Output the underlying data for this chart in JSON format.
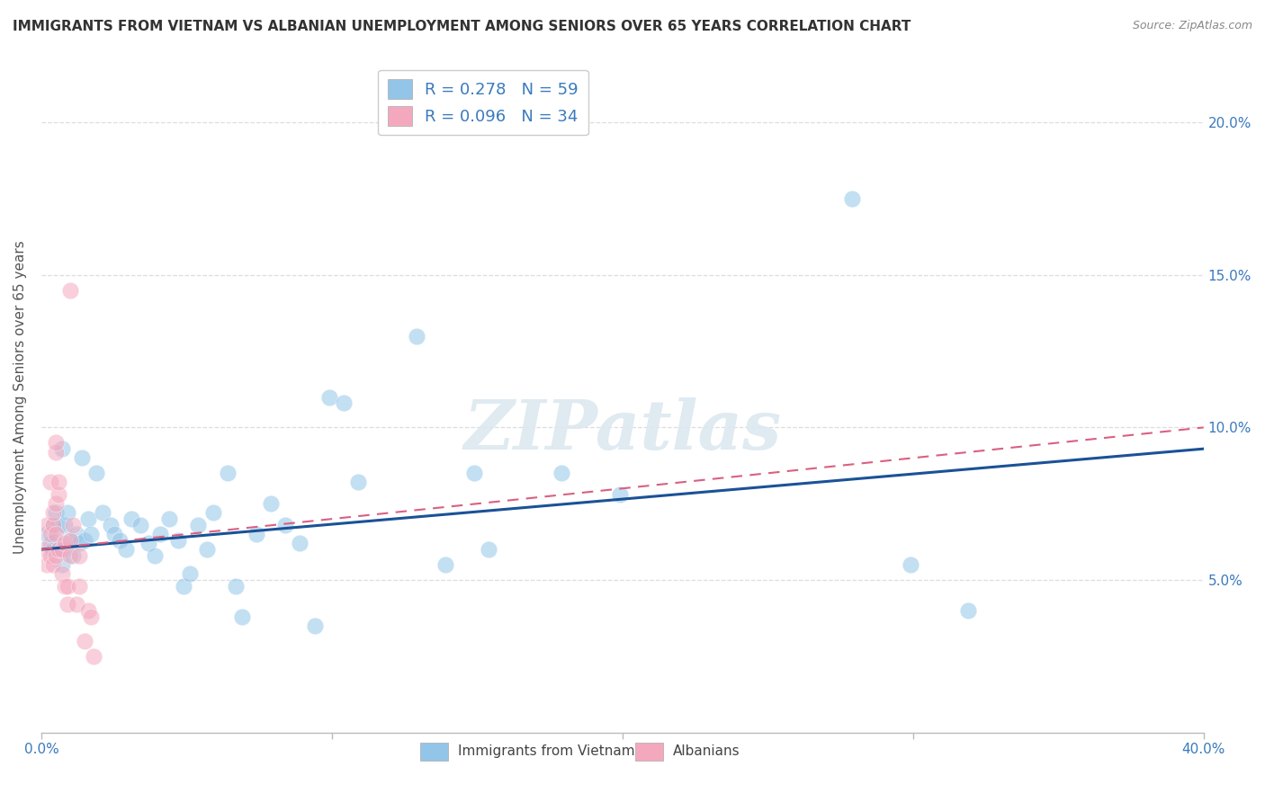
{
  "title": "IMMIGRANTS FROM VIETNAM VS ALBANIAN UNEMPLOYMENT AMONG SENIORS OVER 65 YEARS CORRELATION CHART",
  "source": "Source: ZipAtlas.com",
  "ylabel": "Unemployment Among Seniors over 65 years",
  "xlim": [
    0.0,
    0.4
  ],
  "ylim": [
    0.0,
    0.22
  ],
  "yticks": [
    0.05,
    0.1,
    0.15,
    0.2
  ],
  "ytick_labels": [
    "5.0%",
    "10.0%",
    "15.0%",
    "20.0%"
  ],
  "xtick_positions": [
    0.0,
    0.1,
    0.2,
    0.3,
    0.4
  ],
  "vietnam_color": "#92c5e8",
  "albanian_color": "#f4a8be",
  "vietnam_line_color": "#1a5296",
  "albanian_line_color": "#d96080",
  "albanian_line_dashed": true,
  "watermark": "ZIPatlas",
  "background_color": "#ffffff",
  "grid_color": "#dddddd",
  "legend_label_1": "R = 0.278   N = 59",
  "legend_label_2": "R = 0.096   N = 34",
  "bottom_label_vietnam": "Immigrants from Vietnam",
  "bottom_label_albanian": "Albanians",
  "title_fontsize": 11,
  "source_fontsize": 9,
  "vietnam_points": [
    [
      0.002,
      0.065
    ],
    [
      0.003,
      0.062
    ],
    [
      0.004,
      0.06
    ],
    [
      0.004,
      0.068
    ],
    [
      0.005,
      0.063
    ],
    [
      0.005,
      0.072
    ],
    [
      0.006,
      0.06
    ],
    [
      0.006,
      0.068
    ],
    [
      0.007,
      0.055
    ],
    [
      0.007,
      0.093
    ],
    [
      0.008,
      0.06
    ],
    [
      0.008,
      0.068
    ],
    [
      0.009,
      0.072
    ],
    [
      0.01,
      0.063
    ],
    [
      0.011,
      0.058
    ],
    [
      0.012,
      0.065
    ],
    [
      0.013,
      0.062
    ],
    [
      0.014,
      0.09
    ],
    [
      0.015,
      0.063
    ],
    [
      0.016,
      0.07
    ],
    [
      0.017,
      0.065
    ],
    [
      0.019,
      0.085
    ],
    [
      0.021,
      0.072
    ],
    [
      0.024,
      0.068
    ],
    [
      0.025,
      0.065
    ],
    [
      0.027,
      0.063
    ],
    [
      0.029,
      0.06
    ],
    [
      0.031,
      0.07
    ],
    [
      0.034,
      0.068
    ],
    [
      0.037,
      0.062
    ],
    [
      0.039,
      0.058
    ],
    [
      0.041,
      0.065
    ],
    [
      0.044,
      0.07
    ],
    [
      0.047,
      0.063
    ],
    [
      0.049,
      0.048
    ],
    [
      0.051,
      0.052
    ],
    [
      0.054,
      0.068
    ],
    [
      0.057,
      0.06
    ],
    [
      0.059,
      0.072
    ],
    [
      0.064,
      0.085
    ],
    [
      0.067,
      0.048
    ],
    [
      0.069,
      0.038
    ],
    [
      0.074,
      0.065
    ],
    [
      0.079,
      0.075
    ],
    [
      0.084,
      0.068
    ],
    [
      0.089,
      0.062
    ],
    [
      0.094,
      0.035
    ],
    [
      0.099,
      0.11
    ],
    [
      0.104,
      0.108
    ],
    [
      0.109,
      0.082
    ],
    [
      0.139,
      0.055
    ],
    [
      0.149,
      0.085
    ],
    [
      0.154,
      0.06
    ],
    [
      0.179,
      0.085
    ],
    [
      0.199,
      0.078
    ],
    [
      0.279,
      0.175
    ],
    [
      0.299,
      0.055
    ],
    [
      0.319,
      0.04
    ],
    [
      0.129,
      0.13
    ]
  ],
  "albanian_points": [
    [
      0.001,
      0.06
    ],
    [
      0.002,
      0.055
    ],
    [
      0.002,
      0.068
    ],
    [
      0.003,
      0.058
    ],
    [
      0.003,
      0.065
    ],
    [
      0.003,
      0.082
    ],
    [
      0.004,
      0.055
    ],
    [
      0.004,
      0.068
    ],
    [
      0.004,
      0.072
    ],
    [
      0.005,
      0.058
    ],
    [
      0.005,
      0.065
    ],
    [
      0.005,
      0.075
    ],
    [
      0.005,
      0.092
    ],
    [
      0.005,
      0.095
    ],
    [
      0.006,
      0.06
    ],
    [
      0.006,
      0.078
    ],
    [
      0.006,
      0.082
    ],
    [
      0.007,
      0.052
    ],
    [
      0.007,
      0.06
    ],
    [
      0.008,
      0.048
    ],
    [
      0.008,
      0.062
    ],
    [
      0.009,
      0.042
    ],
    [
      0.009,
      0.048
    ],
    [
      0.01,
      0.058
    ],
    [
      0.01,
      0.063
    ],
    [
      0.01,
      0.145
    ],
    [
      0.011,
      0.068
    ],
    [
      0.012,
      0.042
    ],
    [
      0.013,
      0.048
    ],
    [
      0.013,
      0.058
    ],
    [
      0.015,
      0.03
    ],
    [
      0.016,
      0.04
    ],
    [
      0.017,
      0.038
    ],
    [
      0.018,
      0.025
    ]
  ],
  "vietnam_line": [
    0.0,
    0.06,
    0.4,
    0.093
  ],
  "albanian_line": [
    0.0,
    0.06,
    0.4,
    0.1
  ]
}
